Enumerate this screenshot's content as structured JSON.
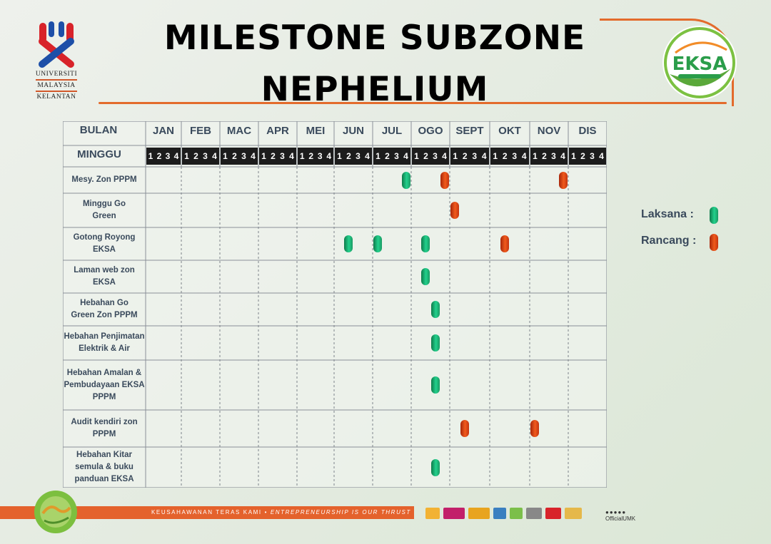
{
  "header": {
    "title_line1": "MILESTONE SUBZONE",
    "title_line2": "NEPHELIUM",
    "university_logo_lines": [
      "UNIVERSITI",
      "MALAYSIA",
      "KELANTAN"
    ],
    "eksa_logo_text": "EKSA"
  },
  "table": {
    "row_header_month": "BULAN",
    "row_header_week": "MINGGU",
    "months": [
      "JAN",
      "FEB",
      "MAC",
      "APR",
      "MEI",
      "JUN",
      "JUL",
      "OGO",
      "SEPT",
      "OKT",
      "NOV",
      "DIS"
    ],
    "week_digits": [
      "1",
      "2",
      "3",
      "4"
    ],
    "rows": [
      {
        "label": [
          "Mesy. Zon PPPM"
        ],
        "marks": [
          {
            "m": 6,
            "w": 4,
            "s": "done"
          },
          {
            "m": 7,
            "w": 4,
            "s": "plan"
          },
          {
            "m": 10,
            "w": 4,
            "s": "plan"
          }
        ]
      },
      {
        "label": [
          "Minggu Go",
          "Green"
        ],
        "marks": [
          {
            "m": 8,
            "w": 1,
            "s": "plan"
          }
        ]
      },
      {
        "label": [
          "Gotong Royong",
          "EKSA"
        ],
        "marks": [
          {
            "m": 5,
            "w": 2,
            "s": "done"
          },
          {
            "m": 6,
            "w": 1,
            "s": "done"
          },
          {
            "m": 7,
            "w": 2,
            "s": "done"
          },
          {
            "m": 9,
            "w": 2,
            "s": "plan"
          }
        ]
      },
      {
        "label": [
          "Laman web zon",
          "EKSA"
        ],
        "marks": [
          {
            "m": 7,
            "w": 2,
            "s": "done"
          }
        ]
      },
      {
        "label": [
          "Hebahan Go",
          "Green Zon PPPM"
        ],
        "marks": [
          {
            "m": 7,
            "w": 3,
            "s": "done"
          }
        ]
      },
      {
        "label": [
          "Hebahan Penjimatan",
          "Elektrik & Air"
        ],
        "marks": [
          {
            "m": 7,
            "w": 3,
            "s": "done"
          }
        ]
      },
      {
        "label": [
          "Hebahan Amalan &",
          "Pembudayaan EKSA",
          "PPPM"
        ],
        "marks": [
          {
            "m": 7,
            "w": 3,
            "s": "done"
          }
        ]
      },
      {
        "label": [
          "Audit kendiri zon",
          "PPPM"
        ],
        "marks": [
          {
            "m": 8,
            "w": 2,
            "s": "plan"
          },
          {
            "m": 10,
            "w": 1,
            "s": "plan"
          }
        ]
      },
      {
        "label": [
          "Hebahan Kitar",
          "semula & buku",
          "panduan EKSA"
        ],
        "marks": [
          {
            "m": 7,
            "w": 3,
            "s": "done"
          }
        ]
      }
    ]
  },
  "legend": {
    "done_label": "Laksana :",
    "plan_label": "Rancang :"
  },
  "colors": {
    "done": "#1fbf80",
    "plan": "#e8501a",
    "accent": "#e36b2c"
  },
  "footer": {
    "slogan_ms": "KEUSAHAWANAN TERAS KAMI",
    "separator": "•",
    "slogan_en": "ENTREPRENEURSHIP IS OUR THRUST",
    "social_handle": "OfficialUMK"
  }
}
